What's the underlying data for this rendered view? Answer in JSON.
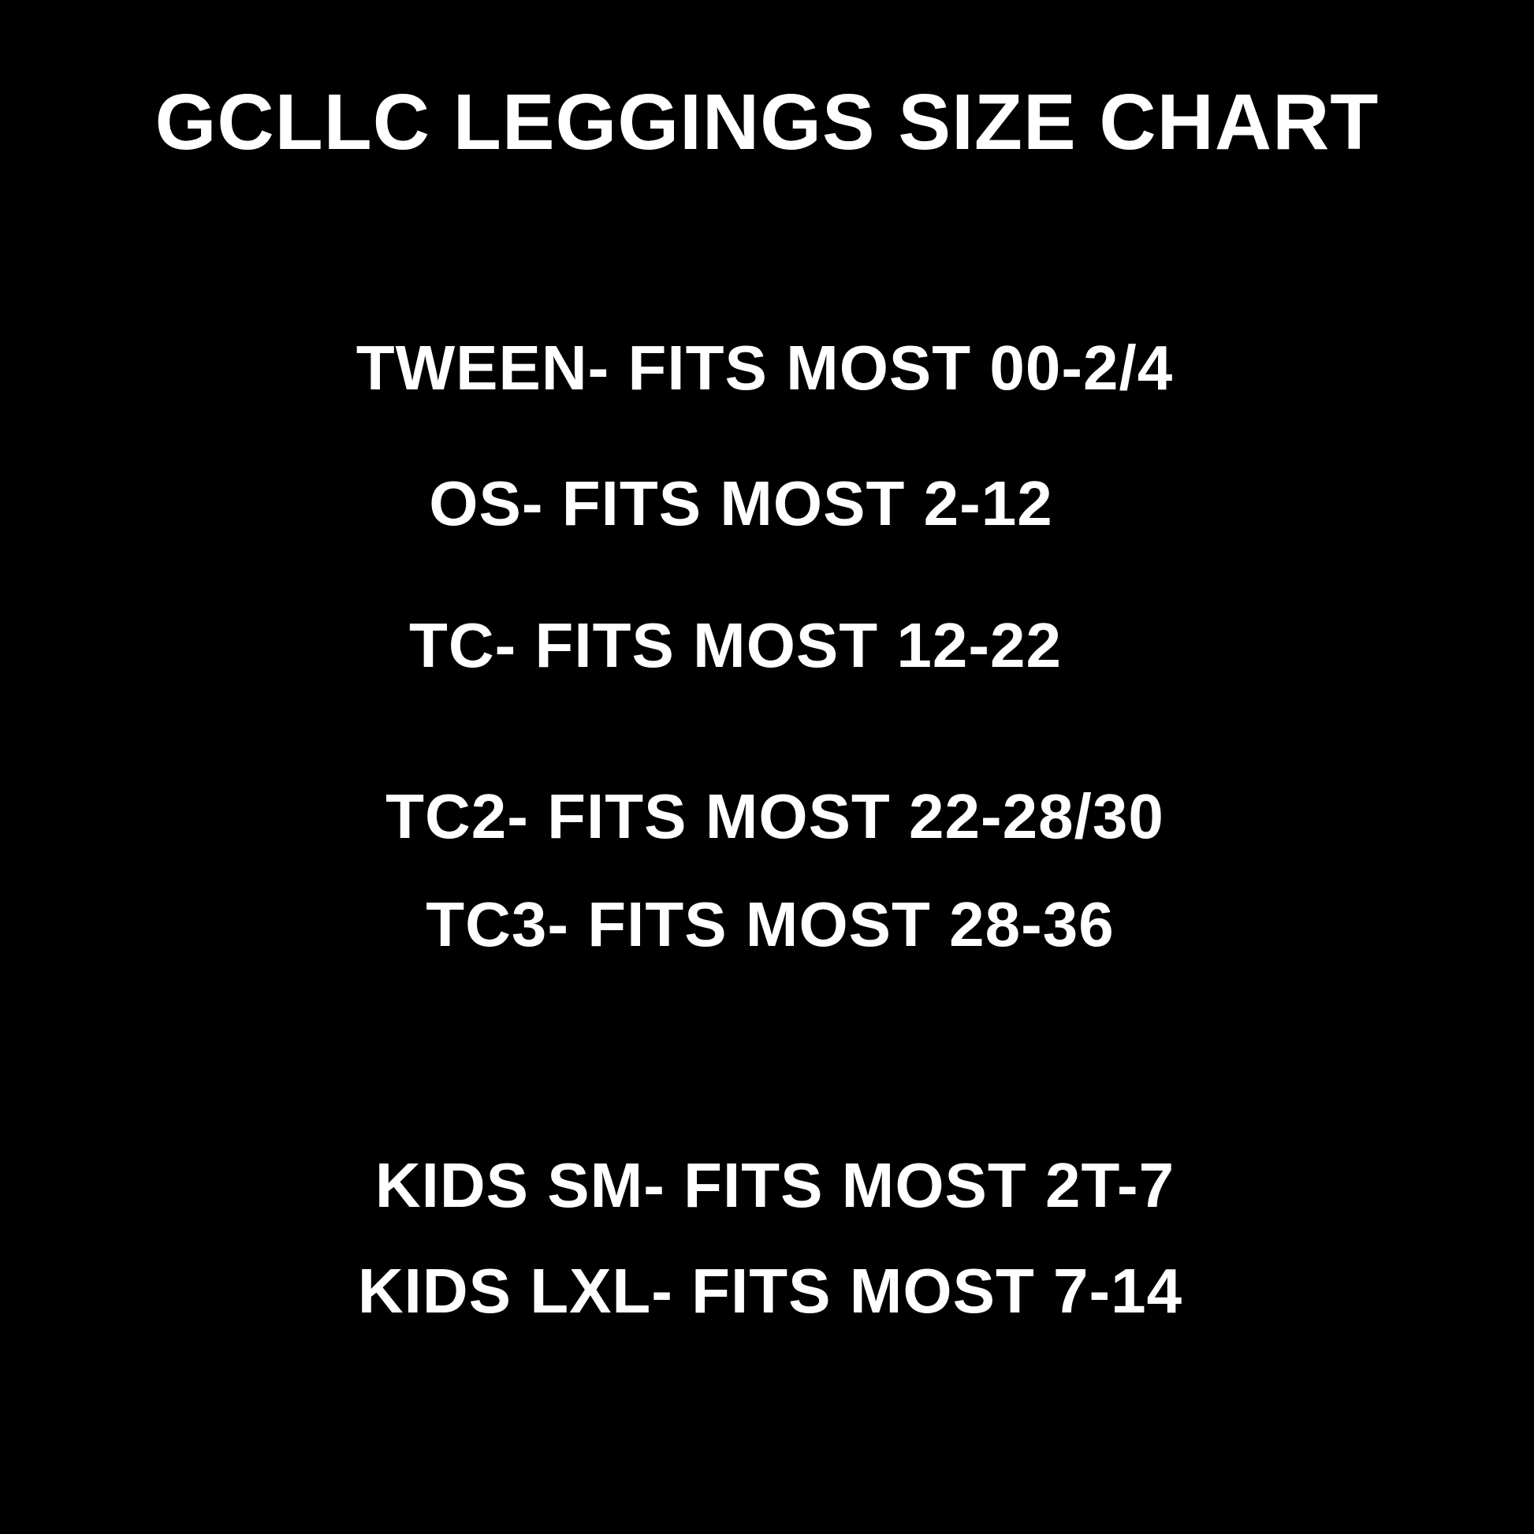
{
  "title": "GCLLC LEGGINGS SIZE CHART",
  "colors": {
    "background": "#000000",
    "text": "#ffffff"
  },
  "adult_sizes": [
    "TWEEN- FITS MOST 00-2/4",
    "OS- FITS MOST 2-12",
    "TC- FITS MOST 12-22",
    "TC2- FITS MOST 22-28/30",
    "TC3- FITS MOST 28-36"
  ],
  "kids_sizes": [
    "KIDS SM- FITS MOST 2T-7",
    "KIDS LXL- FITS MOST 7-14"
  ]
}
